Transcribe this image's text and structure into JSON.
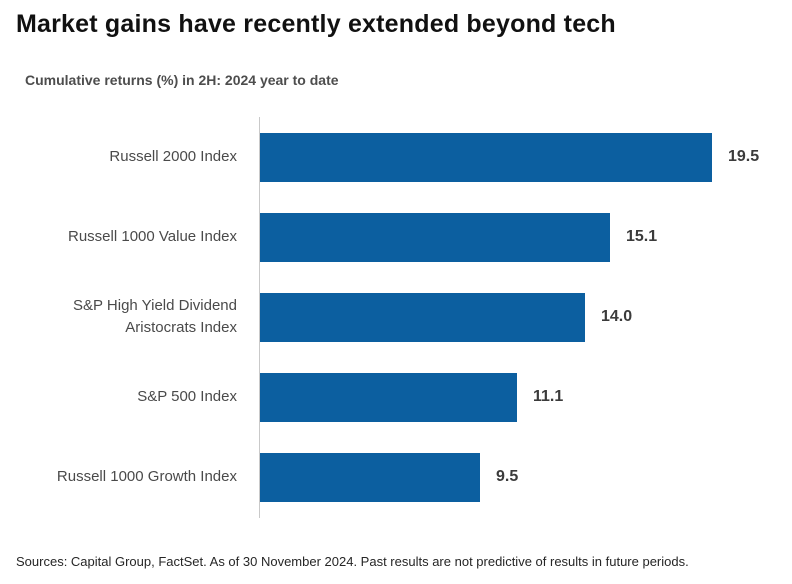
{
  "title": "Market gains have recently extended beyond tech",
  "subtitle": "Cumulative returns (%) in 2H: 2024 year to date",
  "footer": "Sources: Capital Group, FactSet. As of 30 November 2024. Past results are not predictive of results in future periods.",
  "colors": {
    "bar": "#0c5fa0",
    "axis": "#c9c9c9",
    "title_text": "#111111",
    "category_text": "#4a4a4a",
    "value_text": "#3b3b3b",
    "footer_text": "#262626"
  },
  "chart_data": {
    "type": "bar",
    "orientation": "horizontal",
    "title": "Market gains have recently extended beyond tech",
    "subtitle": "Cumulative returns (%) in 2H: 2024 year to date",
    "categories": [
      "Russell 2000 Index",
      "Russell 1000 Value Index",
      "S&P High Yield Dividend Aristocrats Index",
      "S&P 500 Index",
      "Russell 1000 Growth Index"
    ],
    "values": [
      19.5,
      15.1,
      14.0,
      11.1,
      9.5
    ],
    "value_labels": [
      "19.5",
      "15.1",
      "14.0",
      "11.1",
      "9.5"
    ],
    "xlabel": "",
    "ylabel": "",
    "xlim": [
      0,
      21
    ],
    "grid": false,
    "legend": false,
    "bar_color": "#0c5fa0"
  }
}
